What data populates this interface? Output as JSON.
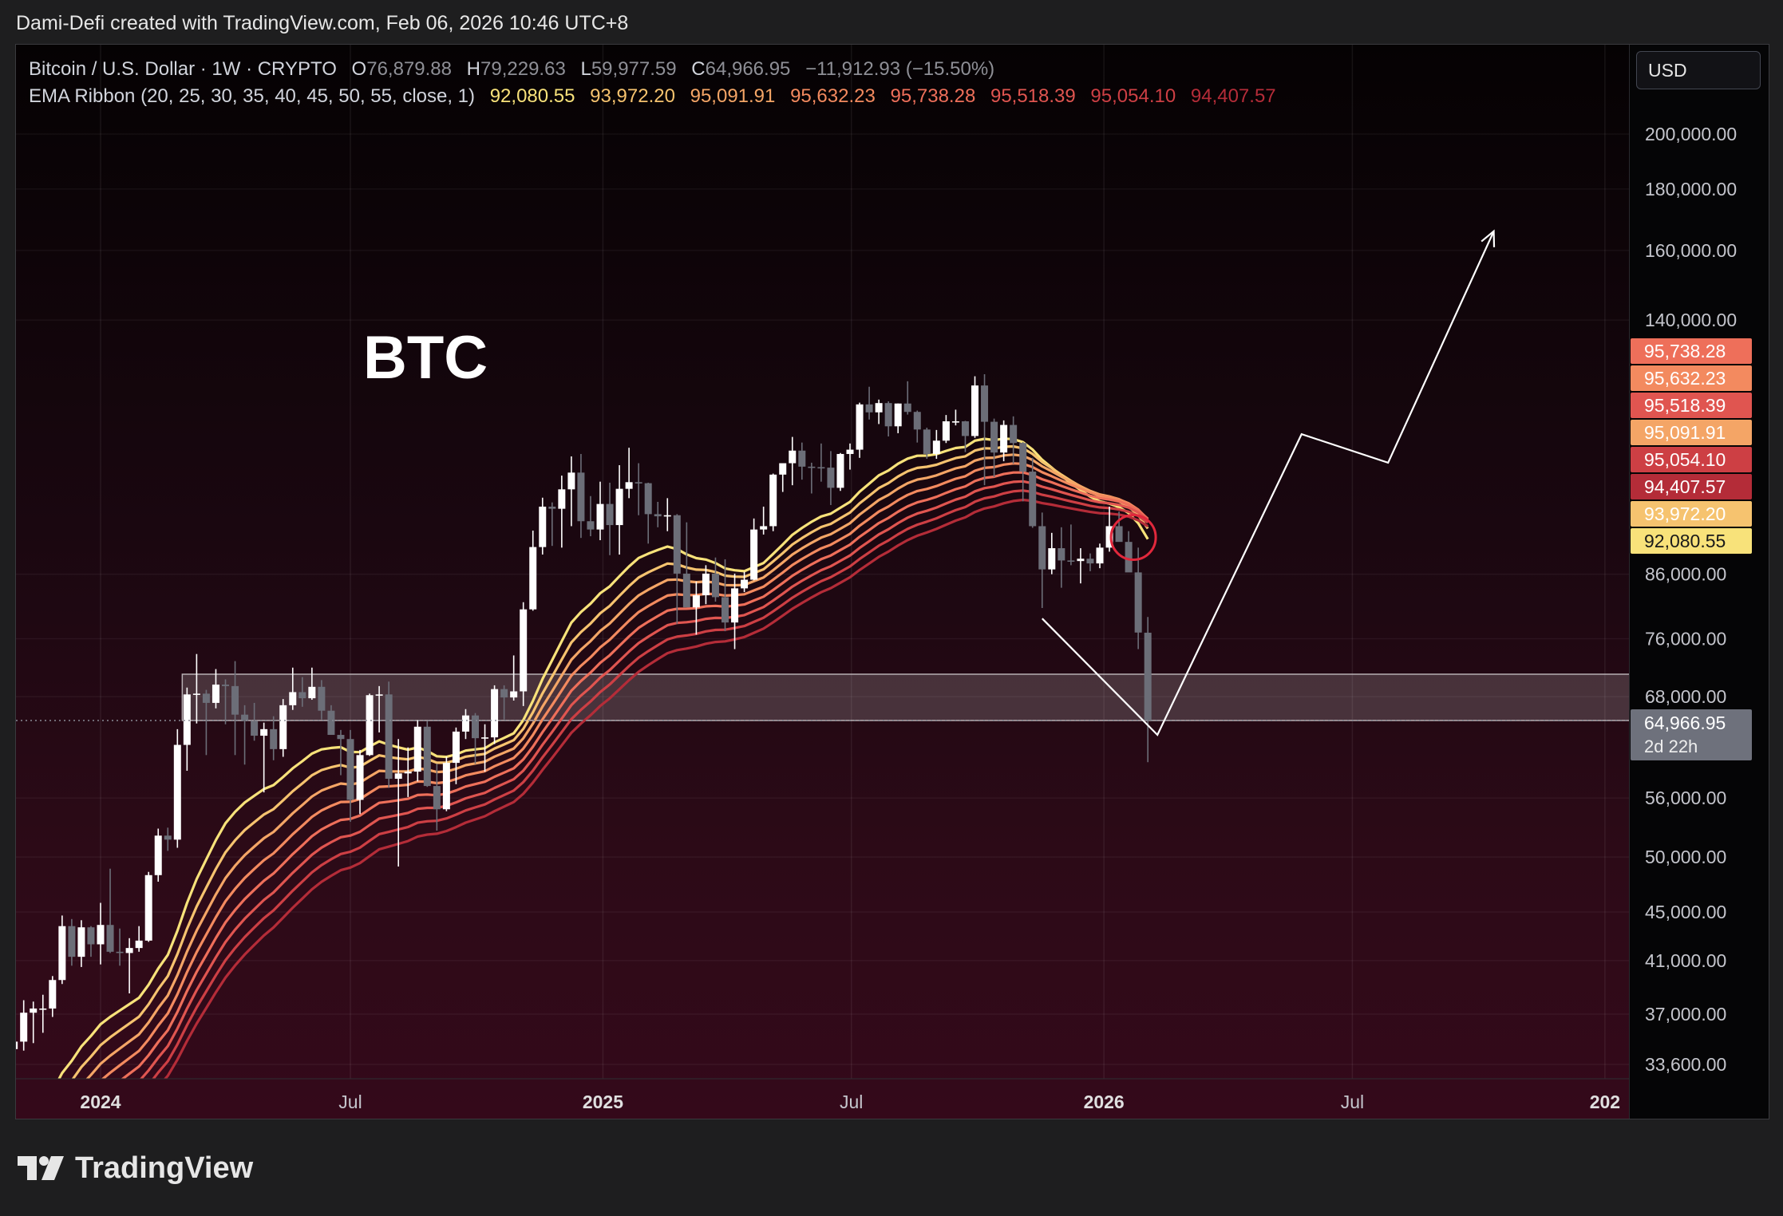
{
  "header": {
    "attribution": "Dami-Defi created with TradingView.com, Feb 06, 2026 10:46 UTC+8"
  },
  "currency": "USD",
  "brand": {
    "name": "TradingView",
    "icon": "tradingview-logo-icon"
  },
  "legend": {
    "symbol": "Bitcoin / U.S. Dollar · 1W · CRYPTO",
    "o_label": "O",
    "o": "76,879.88",
    "h_label": "H",
    "h": "79,229.63",
    "l_label": "L",
    "l": "59,977.59",
    "c_label": "C",
    "c": "64,966.95",
    "change": "−11,912.93 (−15.50%)",
    "ema_label": "EMA Ribbon (20, 25, 30, 35, 40, 45, 50, 55, close, 1)",
    "ema_values": [
      "92,080.55",
      "93,972.20",
      "95,091.91",
      "95,632.23",
      "95,738.28",
      "95,518.39",
      "95,054.10",
      "94,407.57"
    ]
  },
  "colors": {
    "ema": [
      "#f8e27a",
      "#f6c36f",
      "#f4a566",
      "#f38a5f",
      "#ee6f5a",
      "#e05550",
      "#cd3f44",
      "#b42c38"
    ],
    "up": "#ffffff",
    "down": "#6c6e78",
    "annotation": "#ffffff",
    "zone_fill": "rgba(255,255,255,0.17)",
    "circle": "#e1283c"
  },
  "chart_data": {
    "type": "candlestick",
    "title": "BTC",
    "symbol": "Bitcoin / U.S. Dollar",
    "interval": "1W",
    "log_scale": true,
    "grid": true,
    "ylim": [
      33000,
      245000
    ],
    "x_ticks": [
      {
        "label": "2024",
        "date": "2024-01-01",
        "bold": true
      },
      {
        "label": "Jul",
        "date": "2024-07-01",
        "bold": false
      },
      {
        "label": "2025",
        "date": "2025-01-01",
        "bold": true
      },
      {
        "label": "Jul",
        "date": "2025-07-01",
        "bold": false
      },
      {
        "label": "2026",
        "date": "2026-01-01",
        "bold": true
      },
      {
        "label": "Jul",
        "date": "2026-07-01",
        "bold": false
      },
      {
        "label": "202",
        "date": "2027-01-01",
        "bold": true
      }
    ],
    "y_ticks": [
      {
        "value": 200000,
        "label": "200,000.00"
      },
      {
        "value": 180000,
        "label": "180,000.00"
      },
      {
        "value": 160000,
        "label": "160,000.00"
      },
      {
        "value": 140000,
        "label": "140,000.00"
      },
      {
        "value": 86000,
        "label": "86,000.00"
      },
      {
        "value": 76000,
        "label": "76,000.00"
      },
      {
        "value": 68000,
        "label": "68,000.00"
      },
      {
        "value": 56000,
        "label": "56,000.00"
      },
      {
        "value": 50000,
        "label": "50,000.00"
      },
      {
        "value": 45000,
        "label": "45,000.00"
      },
      {
        "value": 41000,
        "label": "41,000.00"
      },
      {
        "value": 37000,
        "label": "37,000.00"
      },
      {
        "value": 33600,
        "label": "33,600.00"
      }
    ],
    "price_tags": [
      {
        "value": "95,738.28",
        "color": "#ee6f5a"
      },
      {
        "value": "95,632.23",
        "color": "#f38a5f"
      },
      {
        "value": "95,518.39",
        "color": "#e05550"
      },
      {
        "value": "95,091.91",
        "color": "#f4a566"
      },
      {
        "value": "95,054.10",
        "color": "#cd3f44"
      },
      {
        "value": "94,407.57",
        "color": "#b42c38"
      },
      {
        "value": "93,972.20",
        "color": "#f6c36f"
      },
      {
        "value": "92,080.55",
        "color": "#f8e27a"
      }
    ],
    "last_price": {
      "value": "64,966.95",
      "countdown": "2d 22h"
    },
    "zone": {
      "low": 64966.95,
      "high": 71000,
      "start": "2024-03-04"
    },
    "candles": [
      {
        "t": "2023-10-16",
        "o": 27000,
        "h": 35200,
        "l": 26800,
        "c": 34500
      },
      {
        "t": "2023-10-23",
        "o": 34500,
        "h": 35900,
        "l": 33800,
        "c": 34600
      },
      {
        "t": "2023-10-30",
        "o": 34600,
        "h": 35700,
        "l": 34000,
        "c": 35100
      },
      {
        "t": "2023-11-06",
        "o": 35100,
        "h": 38000,
        "l": 34500,
        "c": 37100
      },
      {
        "t": "2023-11-13",
        "o": 37100,
        "h": 37900,
        "l": 35000,
        "c": 37400
      },
      {
        "t": "2023-11-20",
        "o": 37400,
        "h": 38400,
        "l": 35700,
        "c": 37400
      },
      {
        "t": "2023-11-27",
        "o": 37400,
        "h": 39800,
        "l": 36800,
        "c": 39500
      },
      {
        "t": "2023-12-04",
        "o": 39500,
        "h": 44700,
        "l": 39200,
        "c": 43800
      },
      {
        "t": "2023-12-11",
        "o": 43800,
        "h": 44400,
        "l": 40600,
        "c": 41300
      },
      {
        "t": "2023-12-18",
        "o": 41300,
        "h": 44300,
        "l": 40500,
        "c": 43700
      },
      {
        "t": "2023-12-25",
        "o": 43700,
        "h": 43800,
        "l": 41300,
        "c": 42300
      },
      {
        "t": "2024-01-01",
        "o": 42300,
        "h": 45800,
        "l": 40700,
        "c": 43900
      },
      {
        "t": "2024-01-08",
        "o": 43900,
        "h": 48900,
        "l": 41600,
        "c": 41700
      },
      {
        "t": "2024-01-15",
        "o": 41700,
        "h": 43600,
        "l": 40600,
        "c": 41600
      },
      {
        "t": "2024-01-22",
        "o": 41600,
        "h": 42800,
        "l": 38500,
        "c": 42000
      },
      {
        "t": "2024-01-29",
        "o": 42000,
        "h": 43800,
        "l": 41700,
        "c": 42600
      },
      {
        "t": "2024-02-05",
        "o": 42600,
        "h": 48600,
        "l": 42500,
        "c": 48300
      },
      {
        "t": "2024-02-12",
        "o": 48300,
        "h": 52800,
        "l": 47700,
        "c": 52100
      },
      {
        "t": "2024-02-19",
        "o": 52100,
        "h": 52900,
        "l": 50600,
        "c": 51700
      },
      {
        "t": "2024-02-26",
        "o": 51700,
        "h": 63900,
        "l": 50900,
        "c": 62000
      },
      {
        "t": "2024-03-04",
        "o": 62000,
        "h": 69200,
        "l": 59000,
        "c": 68300
      },
      {
        "t": "2024-03-11",
        "o": 68300,
        "h": 73800,
        "l": 64600,
        "c": 68400
      },
      {
        "t": "2024-03-18",
        "o": 68400,
        "h": 68900,
        "l": 60800,
        "c": 67200
      },
      {
        "t": "2024-03-25",
        "o": 67200,
        "h": 71700,
        "l": 66500,
        "c": 69600
      },
      {
        "t": "2024-04-01",
        "o": 69600,
        "h": 70300,
        "l": 64500,
        "c": 69400
      },
      {
        "t": "2024-04-08",
        "o": 69400,
        "h": 72800,
        "l": 60800,
        "c": 65700
      },
      {
        "t": "2024-04-15",
        "o": 65700,
        "h": 66900,
        "l": 59700,
        "c": 64900
      },
      {
        "t": "2024-04-22",
        "o": 64900,
        "h": 67200,
        "l": 62500,
        "c": 63100
      },
      {
        "t": "2024-04-29",
        "o": 63100,
        "h": 64700,
        "l": 56600,
        "c": 63900
      },
      {
        "t": "2024-05-06",
        "o": 63900,
        "h": 65500,
        "l": 60200,
        "c": 61500
      },
      {
        "t": "2024-05-13",
        "o": 61500,
        "h": 67700,
        "l": 60600,
        "c": 66900
      },
      {
        "t": "2024-05-20",
        "o": 66900,
        "h": 71900,
        "l": 66300,
        "c": 68600
      },
      {
        "t": "2024-05-27",
        "o": 68600,
        "h": 70600,
        "l": 66700,
        "c": 67800
      },
      {
        "t": "2024-06-03",
        "o": 67800,
        "h": 71900,
        "l": 67600,
        "c": 69300
      },
      {
        "t": "2024-06-10",
        "o": 69300,
        "h": 70200,
        "l": 65100,
        "c": 66200
      },
      {
        "t": "2024-06-17",
        "o": 66200,
        "h": 66900,
        "l": 63400,
        "c": 63200
      },
      {
        "t": "2024-06-24",
        "o": 63200,
        "h": 63800,
        "l": 58500,
        "c": 62700
      },
      {
        "t": "2024-07-01",
        "o": 62700,
        "h": 63800,
        "l": 53500,
        "c": 55800
      },
      {
        "t": "2024-07-08",
        "o": 55800,
        "h": 61400,
        "l": 54300,
        "c": 60800
      },
      {
        "t": "2024-07-15",
        "o": 60800,
        "h": 68400,
        "l": 60700,
        "c": 68200
      },
      {
        "t": "2024-07-22",
        "o": 68200,
        "h": 69400,
        "l": 63500,
        "c": 68300
      },
      {
        "t": "2024-07-29",
        "o": 68300,
        "h": 70000,
        "l": 57100,
        "c": 58100
      },
      {
        "t": "2024-08-05",
        "o": 58100,
        "h": 62700,
        "l": 49100,
        "c": 58700
      },
      {
        "t": "2024-08-12",
        "o": 58700,
        "h": 61700,
        "l": 56100,
        "c": 58900
      },
      {
        "t": "2024-08-19",
        "o": 58900,
        "h": 65000,
        "l": 57800,
        "c": 64200
      },
      {
        "t": "2024-08-26",
        "o": 64200,
        "h": 64900,
        "l": 57200,
        "c": 57300
      },
      {
        "t": "2024-09-02",
        "o": 57300,
        "h": 59800,
        "l": 52600,
        "c": 54800
      },
      {
        "t": "2024-09-09",
        "o": 54800,
        "h": 60600,
        "l": 54600,
        "c": 59900
      },
      {
        "t": "2024-09-16",
        "o": 59900,
        "h": 64100,
        "l": 57500,
        "c": 63600
      },
      {
        "t": "2024-09-23",
        "o": 63600,
        "h": 66400,
        "l": 62700,
        "c": 65600
      },
      {
        "t": "2024-09-30",
        "o": 65600,
        "h": 65900,
        "l": 59800,
        "c": 62800
      },
      {
        "t": "2024-10-07",
        "o": 62800,
        "h": 64500,
        "l": 58900,
        "c": 62900
      },
      {
        "t": "2024-10-14",
        "o": 62900,
        "h": 69500,
        "l": 62100,
        "c": 69000
      },
      {
        "t": "2024-10-21",
        "o": 69000,
        "h": 69500,
        "l": 65100,
        "c": 67900
      },
      {
        "t": "2024-10-28",
        "o": 67900,
        "h": 73600,
        "l": 67500,
        "c": 68700
      },
      {
        "t": "2024-11-04",
        "o": 68700,
        "h": 81500,
        "l": 66800,
        "c": 80400
      },
      {
        "t": "2024-11-11",
        "o": 80400,
        "h": 93500,
        "l": 80200,
        "c": 90600
      },
      {
        "t": "2024-11-18",
        "o": 90600,
        "h": 99600,
        "l": 89300,
        "c": 97900
      },
      {
        "t": "2024-11-25",
        "o": 97900,
        "h": 98700,
        "l": 90800,
        "c": 97500
      },
      {
        "t": "2024-12-02",
        "o": 97500,
        "h": 103900,
        "l": 90500,
        "c": 101200
      },
      {
        "t": "2024-12-09",
        "o": 101200,
        "h": 107800,
        "l": 94300,
        "c": 104500
      },
      {
        "t": "2024-12-16",
        "o": 104500,
        "h": 108300,
        "l": 92200,
        "c": 95200
      },
      {
        "t": "2024-12-23",
        "o": 95200,
        "h": 99900,
        "l": 92500,
        "c": 93700
      },
      {
        "t": "2024-12-30",
        "o": 93700,
        "h": 102700,
        "l": 91800,
        "c": 98400
      },
      {
        "t": "2025-01-06",
        "o": 98400,
        "h": 102500,
        "l": 89200,
        "c": 94500
      },
      {
        "t": "2025-01-13",
        "o": 94500,
        "h": 106000,
        "l": 89300,
        "c": 101300
      },
      {
        "t": "2025-01-20",
        "o": 101300,
        "h": 109600,
        "l": 99500,
        "c": 102600
      },
      {
        "t": "2025-01-27",
        "o": 102600,
        "h": 106400,
        "l": 96300,
        "c": 102400
      },
      {
        "t": "2025-02-03",
        "o": 102400,
        "h": 102500,
        "l": 91200,
        "c": 96500
      },
      {
        "t": "2025-02-10",
        "o": 96500,
        "h": 98800,
        "l": 94100,
        "c": 96100
      },
      {
        "t": "2025-02-17",
        "o": 96100,
        "h": 99500,
        "l": 93400,
        "c": 96300
      },
      {
        "t": "2025-02-24",
        "o": 96300,
        "h": 96500,
        "l": 78200,
        "c": 86100
      },
      {
        "t": "2025-03-03",
        "o": 86100,
        "h": 95000,
        "l": 81400,
        "c": 80700
      },
      {
        "t": "2025-03-10",
        "o": 80700,
        "h": 84800,
        "l": 76600,
        "c": 82600
      },
      {
        "t": "2025-03-17",
        "o": 82600,
        "h": 87500,
        "l": 81200,
        "c": 86100
      },
      {
        "t": "2025-03-24",
        "o": 86100,
        "h": 88800,
        "l": 81600,
        "c": 82300
      },
      {
        "t": "2025-03-31",
        "o": 82300,
        "h": 88500,
        "l": 77100,
        "c": 78400
      },
      {
        "t": "2025-04-07",
        "o": 78400,
        "h": 86100,
        "l": 74500,
        "c": 83700
      },
      {
        "t": "2025-04-14",
        "o": 83700,
        "h": 86400,
        "l": 83100,
        "c": 85100
      },
      {
        "t": "2025-04-21",
        "o": 85100,
        "h": 95700,
        "l": 85000,
        "c": 93700
      },
      {
        "t": "2025-04-28",
        "o": 93700,
        "h": 97900,
        "l": 92800,
        "c": 94300
      },
      {
        "t": "2025-05-05",
        "o": 94300,
        "h": 104300,
        "l": 93400,
        "c": 104100
      },
      {
        "t": "2025-05-12",
        "o": 104100,
        "h": 105800,
        "l": 100700,
        "c": 106400
      },
      {
        "t": "2025-05-19",
        "o": 106400,
        "h": 111900,
        "l": 102000,
        "c": 109000
      },
      {
        "t": "2025-05-26",
        "o": 109000,
        "h": 110700,
        "l": 103100,
        "c": 105700
      },
      {
        "t": "2025-06-02",
        "o": 105700,
        "h": 106500,
        "l": 100400,
        "c": 105600
      },
      {
        "t": "2025-06-09",
        "o": 105600,
        "h": 110500,
        "l": 102700,
        "c": 105500
      },
      {
        "t": "2025-06-16",
        "o": 105500,
        "h": 108900,
        "l": 98200,
        "c": 101500
      },
      {
        "t": "2025-06-23",
        "o": 101500,
        "h": 108500,
        "l": 100900,
        "c": 108300
      },
      {
        "t": "2025-06-30",
        "o": 108300,
        "h": 110500,
        "l": 105100,
        "c": 109200
      },
      {
        "t": "2025-07-07",
        "o": 109200,
        "h": 119500,
        "l": 107500,
        "c": 119100
      },
      {
        "t": "2025-07-14",
        "o": 119100,
        "h": 123200,
        "l": 115700,
        "c": 117300
      },
      {
        "t": "2025-07-21",
        "o": 117300,
        "h": 120200,
        "l": 114700,
        "c": 119400
      },
      {
        "t": "2025-07-28",
        "o": 119400,
        "h": 119800,
        "l": 112000,
        "c": 114200
      },
      {
        "t": "2025-08-04",
        "o": 114200,
        "h": 119300,
        "l": 112700,
        "c": 119300
      },
      {
        "t": "2025-08-11",
        "o": 119300,
        "h": 124500,
        "l": 116800,
        "c": 117400
      },
      {
        "t": "2025-08-18",
        "o": 117400,
        "h": 117700,
        "l": 110700,
        "c": 113500
      },
      {
        "t": "2025-08-25",
        "o": 113500,
        "h": 113900,
        "l": 107300,
        "c": 108300
      },
      {
        "t": "2025-09-01",
        "o": 108300,
        "h": 113400,
        "l": 107300,
        "c": 111100
      },
      {
        "t": "2025-09-08",
        "o": 111100,
        "h": 116700,
        "l": 110600,
        "c": 115300
      },
      {
        "t": "2025-09-15",
        "o": 115300,
        "h": 117900,
        "l": 114400,
        "c": 115300
      },
      {
        "t": "2025-09-22",
        "o": 115300,
        "h": 115400,
        "l": 108700,
        "c": 112100
      },
      {
        "t": "2025-09-29",
        "o": 112100,
        "h": 125700,
        "l": 111700,
        "c": 123500
      },
      {
        "t": "2025-10-06",
        "o": 123500,
        "h": 126200,
        "l": 102000,
        "c": 115200
      },
      {
        "t": "2025-10-13",
        "o": 115200,
        "h": 115900,
        "l": 103600,
        "c": 108600
      },
      {
        "t": "2025-10-20",
        "o": 108600,
        "h": 115500,
        "l": 106800,
        "c": 114500
      },
      {
        "t": "2025-10-27",
        "o": 114500,
        "h": 116400,
        "l": 106300,
        "c": 110600
      },
      {
        "t": "2025-11-03",
        "o": 110600,
        "h": 110800,
        "l": 98900,
        "c": 104700
      },
      {
        "t": "2025-11-10",
        "o": 104700,
        "h": 107500,
        "l": 94000,
        "c": 94300
      },
      {
        "t": "2025-11-17",
        "o": 94300,
        "h": 96800,
        "l": 80600,
        "c": 86800
      },
      {
        "t": "2025-11-24",
        "o": 86800,
        "h": 93100,
        "l": 86000,
        "c": 90400
      },
      {
        "t": "2025-12-01",
        "o": 90400,
        "h": 94100,
        "l": 83800,
        "c": 88300
      },
      {
        "t": "2025-12-08",
        "o": 88300,
        "h": 94600,
        "l": 87500,
        "c": 88200
      },
      {
        "t": "2025-12-15",
        "o": 88200,
        "h": 90400,
        "l": 84500,
        "c": 88600
      },
      {
        "t": "2025-12-22",
        "o": 88600,
        "h": 89500,
        "l": 86500,
        "c": 87800
      },
      {
        "t": "2025-12-29",
        "o": 87800,
        "h": 91200,
        "l": 87000,
        "c": 90500
      },
      {
        "t": "2026-01-05",
        "o": 90500,
        "h": 97900,
        "l": 89800,
        "c": 94300
      },
      {
        "t": "2026-01-12",
        "o": 94300,
        "h": 97000,
        "l": 91900,
        "c": 91500
      },
      {
        "t": "2026-01-19",
        "o": 91500,
        "h": 93400,
        "l": 87200,
        "c": 86300
      },
      {
        "t": "2026-01-26",
        "o": 86300,
        "h": 90500,
        "l": 74500,
        "c": 76900
      },
      {
        "t": "2026-02-02",
        "o": 76879.88,
        "h": 79229.63,
        "l": 59977.59,
        "c": 64966.95
      }
    ],
    "annotations": {
      "projection": [
        {
          "t": "2025-11-17",
          "v": 79000
        },
        {
          "t": "2026-02-09",
          "v": 63200
        },
        {
          "t": "2026-05-25",
          "v": 112500
        },
        {
          "t": "2026-07-27",
          "v": 106500
        },
        {
          "t": "2026-10-12",
          "v": 166000
        }
      ],
      "circle": {
        "t": "2026-01-12",
        "v": 92300
      }
    }
  }
}
